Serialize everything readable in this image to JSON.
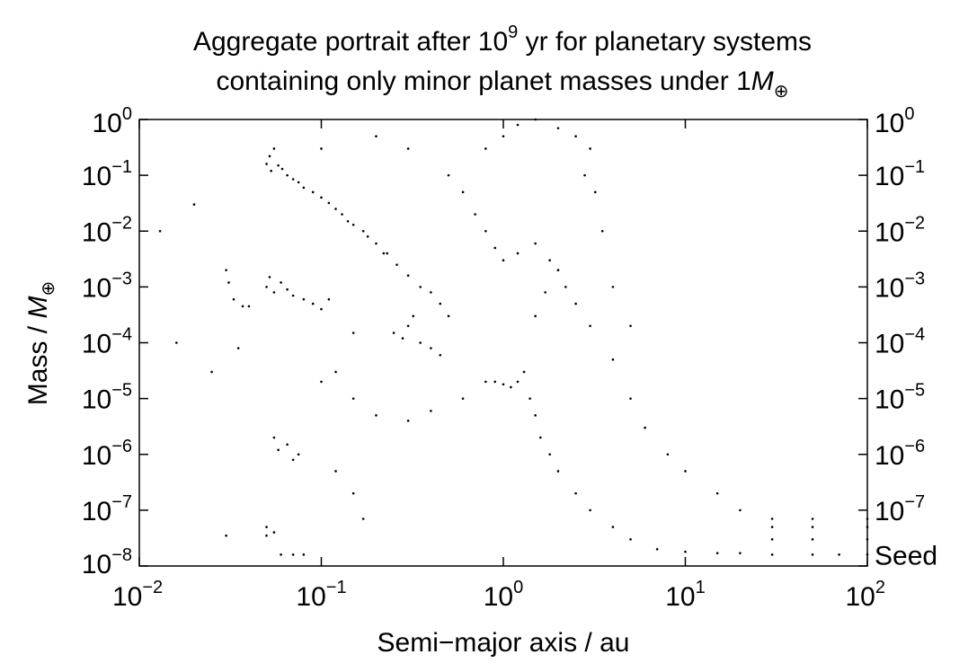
{
  "chart_data": {
    "type": "scatter",
    "title": {
      "line1_prefix": "Aggregate portrait after 10",
      "line1_exp": "9",
      "line1_suffix": " yr for planetary systems",
      "line2_prefix": "containing only minor planet masses under 1",
      "line2_symbol": "M",
      "line2_sub": "⊕"
    },
    "xlabel": "Semi−major axis / au",
    "ylabel": {
      "prefix": "Mass / ",
      "symbol": "M",
      "sub": "⊕"
    },
    "x_scale": "log",
    "y_scale": "log",
    "xlim": [
      0.01,
      100
    ],
    "ylim": [
      1e-08,
      1
    ],
    "x_ticks": [
      {
        "value": 0.01,
        "base": "10",
        "exp": "−2"
      },
      {
        "value": 0.1,
        "base": "10",
        "exp": "−1"
      },
      {
        "value": 1,
        "base": "10",
        "exp": "0"
      },
      {
        "value": 10,
        "base": "10",
        "exp": "1"
      },
      {
        "value": 100,
        "base": "10",
        "exp": "2"
      }
    ],
    "y_ticks": [
      {
        "value": 1,
        "base": "10",
        "exp": "0"
      },
      {
        "value": 0.1,
        "base": "10",
        "exp": "−1"
      },
      {
        "value": 0.01,
        "base": "10",
        "exp": "−2"
      },
      {
        "value": 0.001,
        "base": "10",
        "exp": "−3"
      },
      {
        "value": 0.0001,
        "base": "10",
        "exp": "−4"
      },
      {
        "value": 1e-05,
        "base": "10",
        "exp": "−5"
      },
      {
        "value": 1e-06,
        "base": "10",
        "exp": "−6"
      },
      {
        "value": 1e-07,
        "base": "10",
        "exp": "−7"
      },
      {
        "value": 1e-08,
        "base": "10",
        "exp": "−8"
      }
    ],
    "right_ticks": [
      {
        "value": 1,
        "base": "10",
        "exp": "0"
      },
      {
        "value": 0.1,
        "base": "10",
        "exp": "−1"
      },
      {
        "value": 0.01,
        "base": "10",
        "exp": "−2"
      },
      {
        "value": 0.001,
        "base": "10",
        "exp": "−3"
      },
      {
        "value": 0.0001,
        "base": "10",
        "exp": "−4"
      },
      {
        "value": 1e-05,
        "base": "10",
        "exp": "−5"
      },
      {
        "value": 1e-06,
        "base": "10",
        "exp": "−6"
      },
      {
        "value": 1e-07,
        "base": "10",
        "exp": "−7"
      }
    ],
    "annotation": {
      "text": "Seed",
      "value": 1.6e-08
    },
    "grid": false,
    "marker_color": "#000000",
    "series": [
      {
        "values": [
          [
            0.05,
            0.16
          ],
          [
            0.052,
            0.22
          ],
          [
            0.055,
            0.3
          ],
          [
            0.053,
            0.12
          ],
          [
            0.058,
            0.15
          ],
          [
            0.061,
            0.13
          ],
          [
            0.065,
            0.1
          ],
          [
            0.07,
            0.085
          ],
          [
            0.075,
            0.075
          ],
          [
            0.08,
            0.06
          ],
          [
            0.09,
            0.05
          ],
          [
            0.1,
            0.04
          ],
          [
            0.11,
            0.032
          ],
          [
            0.12,
            0.025
          ],
          [
            0.13,
            0.02
          ],
          [
            0.15,
            0.013
          ],
          [
            0.17,
            0.01
          ],
          [
            0.2,
            0.006
          ],
          [
            0.23,
            0.004
          ],
          [
            0.26,
            0.0025
          ],
          [
            0.3,
            0.0016
          ],
          [
            0.35,
            0.001
          ],
          [
            0.4,
            0.0008
          ],
          [
            0.45,
            0.0005
          ],
          [
            0.5,
            0.0003
          ],
          [
            0.22,
            0.004
          ],
          [
            0.18,
            0.008
          ],
          [
            0.14,
            0.015
          ],
          [
            0.3,
            0.0002
          ],
          [
            0.25,
            0.00015
          ],
          [
            0.35,
            0.0001
          ],
          [
            0.4,
            8e-05
          ],
          [
            0.45,
            6e-05
          ],
          [
            0.28,
            0.00012
          ],
          [
            0.32,
            0.0003
          ],
          [
            0.05,
            0.001
          ],
          [
            0.055,
            0.0008
          ],
          [
            0.06,
            0.0012
          ],
          [
            0.065,
            0.0009
          ],
          [
            0.07,
            0.0007
          ],
          [
            0.08,
            0.0006
          ],
          [
            0.09,
            0.0005
          ],
          [
            0.1,
            0.0004
          ],
          [
            0.11,
            0.0006
          ],
          [
            0.052,
            0.0015
          ],
          [
            0.037,
            0.00045
          ],
          [
            0.04,
            0.00045
          ],
          [
            0.033,
            0.0006
          ],
          [
            0.03,
            0.002
          ],
          [
            0.031,
            0.0012
          ],
          [
            0.035,
            8e-05
          ],
          [
            0.025,
            3e-05
          ],
          [
            0.055,
            2e-06
          ],
          [
            0.058,
            1.2e-06
          ],
          [
            0.065,
            1.5e-06
          ],
          [
            0.07,
            8e-07
          ],
          [
            0.075,
            1e-06
          ],
          [
            0.1,
            2e-05
          ],
          [
            0.12,
            3e-05
          ],
          [
            0.15,
            1e-05
          ],
          [
            0.2,
            5e-06
          ],
          [
            0.3,
            4e-06
          ],
          [
            0.4,
            6e-06
          ],
          [
            0.6,
            1e-05
          ],
          [
            0.8,
            2e-05
          ],
          [
            0.12,
            5e-07
          ],
          [
            0.15,
            2e-07
          ],
          [
            0.17,
            7e-08
          ],
          [
            0.03,
            3.5e-08
          ],
          [
            0.05,
            3.5e-08
          ],
          [
            0.06,
            1.6e-08
          ],
          [
            0.07,
            1.6e-08
          ],
          [
            0.08,
            1.6e-08
          ],
          [
            0.05,
            5e-08
          ],
          [
            0.055,
            4e-08
          ],
          [
            0.15,
            0.00015
          ],
          [
            0.013,
            0.01
          ],
          [
            0.016,
            0.0001
          ],
          [
            0.02,
            0.03
          ],
          [
            0.5,
            0.1
          ],
          [
            0.8,
            0.3
          ],
          [
            1.0,
            0.5
          ],
          [
            1.2,
            0.8
          ],
          [
            1.5,
            1.0
          ],
          [
            2.0,
            0.7
          ],
          [
            2.5,
            0.5
          ],
          [
            3.0,
            0.3
          ],
          [
            0.6,
            0.05
          ],
          [
            0.7,
            0.02
          ],
          [
            0.8,
            0.01
          ],
          [
            0.9,
            0.005
          ],
          [
            1.0,
            0.003
          ],
          [
            1.2,
            0.004
          ],
          [
            1.5,
            0.006
          ],
          [
            1.8,
            0.003
          ],
          [
            2.0,
            0.002
          ],
          [
            0.9,
            2e-05
          ],
          [
            1.0,
            1.8e-05
          ],
          [
            1.1,
            1.6e-05
          ],
          [
            1.2,
            2e-05
          ],
          [
            1.3,
            3e-05
          ],
          [
            1.4,
            1e-05
          ],
          [
            1.5,
            5e-06
          ],
          [
            1.6,
            2e-06
          ],
          [
            1.8,
            1e-06
          ],
          [
            2.0,
            5e-07
          ],
          [
            2.5,
            2e-07
          ],
          [
            3.0,
            1e-07
          ],
          [
            4.0,
            5e-08
          ],
          [
            5.0,
            3e-08
          ],
          [
            7.0,
            2e-08
          ],
          [
            10.0,
            1.8e-08
          ],
          [
            15.0,
            1.7e-08
          ],
          [
            20.0,
            1.7e-08
          ],
          [
            30.0,
            1.6e-08
          ],
          [
            50.0,
            1.6e-08
          ],
          [
            70.0,
            1.6e-08
          ],
          [
            100.0,
            1.6e-08
          ],
          [
            1.5,
            0.0003
          ],
          [
            1.7,
            0.0008
          ],
          [
            2.0,
            0.002
          ],
          [
            2.2,
            0.001
          ],
          [
            2.5,
            0.0005
          ],
          [
            3.0,
            0.0002
          ],
          [
            4.0,
            5e-05
          ],
          [
            5.0,
            1e-05
          ],
          [
            6.0,
            3e-06
          ],
          [
            8.0,
            1e-06
          ],
          [
            10.0,
            5e-07
          ],
          [
            15.0,
            2e-07
          ],
          [
            20.0,
            1e-07
          ],
          [
            30.0,
            7e-08
          ],
          [
            50.0,
            7e-08
          ],
          [
            100.0,
            7e-08
          ],
          [
            30.0,
            5e-08
          ],
          [
            50.0,
            5e-08
          ],
          [
            100.0,
            5e-08
          ],
          [
            30.0,
            3e-08
          ],
          [
            50.0,
            3e-08
          ],
          [
            100.0,
            3e-08
          ],
          [
            4.0,
            0.001
          ],
          [
            5.0,
            0.0002
          ],
          [
            3.5,
            0.01
          ],
          [
            3.2,
            0.05
          ],
          [
            2.8,
            0.1
          ],
          [
            0.3,
            0.3
          ],
          [
            0.2,
            0.5
          ],
          [
            0.1,
            0.3
          ]
        ]
      }
    ]
  }
}
